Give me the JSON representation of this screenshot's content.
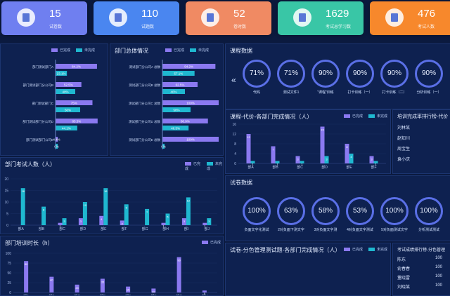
{
  "kpis": [
    {
      "value": "15",
      "label": "试卷数",
      "color": "#6f7ff0",
      "icon": "document-icon"
    },
    {
      "value": "110",
      "label": "试题数",
      "color": "#4a86f0",
      "icon": "list-icon"
    },
    {
      "value": "52",
      "label": "卷时数",
      "color": "#f08a63",
      "icon": "checklist-icon"
    },
    {
      "value": "1629",
      "label": "考试总学习数",
      "color": "#39c6a6",
      "icon": "graduation-icon"
    },
    {
      "value": "476",
      "label": "考试人数",
      "color": "#f7882c",
      "icon": "person-icon"
    }
  ],
  "legend": {
    "a": "已完成",
    "b": "未完成"
  },
  "panel1": {
    "title": "",
    "categories": [
      "部门测试部门A",
      "部门测试部门分公司B",
      "部门测试部门C",
      "部门测试部门分公司D",
      "部门测试部门公司E"
    ],
    "labels_a": [
      "84.2%",
      "52.5%",
      "75%",
      "85.5%",
      "4.4%"
    ],
    "labels_b": [
      "23.1%",
      "40%",
      "50%",
      "44.1%",
      "0%"
    ]
  },
  "panel2": {
    "title": "部门总体情况",
    "categories": [
      "测试部门分公司A 总数",
      "测试部门分公司B 总数",
      "测试部门分公司C 总数",
      "测试部门分公司D 总数",
      "测试部门分公司E 总数"
    ],
    "labels_a": [
      "94.2%",
      "62.5%",
      "100%",
      "80.9%",
      "100%"
    ],
    "labels_b": [
      "57.1%",
      "40%",
      "50%",
      "46.5%",
      "0%"
    ]
  },
  "panel3": {
    "title": "课程数据",
    "items": [
      {
        "value": "71%",
        "label": "代码"
      },
      {
        "value": "71%",
        "label": "测试文件1"
      },
      {
        "value": "90%",
        "label": "“课程”训练"
      },
      {
        "value": "90%",
        "label": "打卡训练（一）"
      },
      {
        "value": "90%",
        "label": "打卡训练（二）"
      },
      {
        "value": "90%",
        "label": "分析训练（一）"
      }
    ]
  },
  "panel4": {
    "title": "部门考试人数（人）",
    "categories": [
      "部A",
      "部B",
      "部C",
      "部D",
      "部E",
      "部F",
      "部G",
      "部H",
      "部I",
      "部J"
    ]
  },
  "panel5": {
    "title": "课程-代价-各部门完成情况（人）",
    "categories": [
      "部A",
      "部B",
      "部C",
      "部D",
      "部E",
      "部F"
    ]
  },
  "panel6": {
    "title": "培训完成率排行榜-代价",
    "rows": [
      "刘林某",
      "赵知川",
      "周宝生",
      "袁小庆"
    ]
  },
  "panel7": {
    "title": "试卷数据",
    "items": [
      {
        "value": "100%",
        "label": "负面文字化测试"
      },
      {
        "value": "63%",
        "label": "2对负面下测文字"
      },
      {
        "value": "58%",
        "label": "3对负面文字测"
      },
      {
        "value": "53%",
        "label": "4对负面文字测试"
      },
      {
        "value": "100%",
        "label": "5对负面测试文字"
      },
      {
        "value": "100%",
        "label": "分析测试测试"
      }
    ]
  },
  "panel8": {
    "title": "部门培训时长（h）"
  },
  "panel9": {
    "title": "试卷-分色管理测试题-各部门完成情况（人）"
  },
  "panel10": {
    "title": "考试成绩排行榜-分色管理",
    "rows": [
      {
        "name": "陈东",
        "score": "100"
      },
      {
        "name": "俞春春",
        "score": "100"
      },
      {
        "name": "董晓雷",
        "score": "100"
      },
      {
        "name": "刘晓某",
        "score": "100"
      }
    ]
  },
  "chart_data": [
    {
      "type": "bar",
      "title": "部门考试人数（人）",
      "categories": [
        "部A",
        "部B",
        "部C",
        "部D",
        "部E",
        "部F",
        "部G",
        "部H",
        "部I",
        "部J"
      ],
      "series": [
        {
          "name": "已完成",
          "values": [
            0,
            0,
            1,
            3,
            4,
            2,
            0,
            1,
            3,
            1
          ]
        },
        {
          "name": "未完成",
          "values": [
            16,
            8,
            3,
            10,
            16,
            9,
            7,
            5,
            12,
            3
          ]
        }
      ],
      "ylim": [
        0,
        20
      ]
    },
    {
      "type": "bar",
      "title": "课程-代价-各部门完成情况（人）",
      "categories": [
        "部A",
        "部B",
        "部C",
        "部D",
        "部E",
        "部F"
      ],
      "series": [
        {
          "name": "已完成",
          "values": [
            12,
            7,
            3,
            15,
            8,
            3
          ]
        },
        {
          "name": "未完成",
          "values": [
            1,
            1,
            1,
            3,
            4,
            1
          ]
        }
      ],
      "ylim": [
        0,
        16
      ]
    },
    {
      "type": "bar",
      "title": "部门培训时长（h）",
      "categories": [
        "部A",
        "部B",
        "部C",
        "部D",
        "部E",
        "部F",
        "部G",
        "部H"
      ],
      "series": [
        {
          "name": "已完成",
          "values": [
            80,
            40,
            20,
            35,
            15,
            10,
            90,
            5
          ]
        }
      ],
      "ylim": [
        0,
        100
      ]
    }
  ]
}
